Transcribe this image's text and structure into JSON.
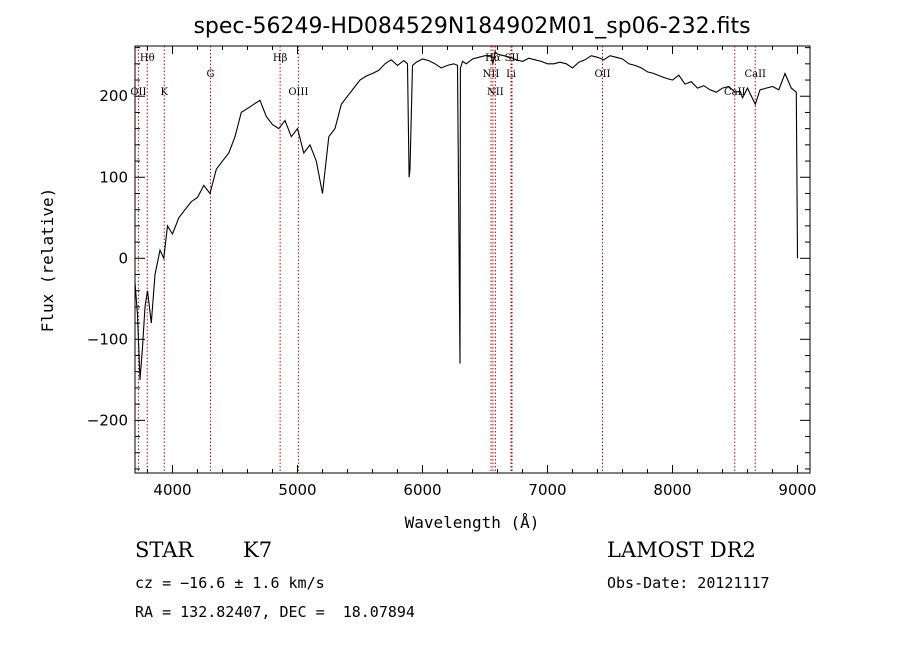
{
  "chart_data": {
    "type": "line",
    "title": "spec-56249-HD084529N184902M01_sp06-232.fits",
    "xlabel": "Wavelength (Å)",
    "ylabel": "Flux (relative)",
    "xlim": [
      3700,
      9100
    ],
    "ylim": [
      -265,
      262
    ],
    "xticks": [
      4000,
      5000,
      6000,
      7000,
      8000,
      9000
    ],
    "yticks": [
      -200,
      -100,
      0,
      100,
      200
    ],
    "xtick_labels": [
      "4000",
      "5000",
      "6000",
      "7000",
      "8000",
      "9000"
    ],
    "ytick_labels": [
      "−200",
      "−100",
      "0",
      "100",
      "200"
    ],
    "grid": false,
    "series": [
      {
        "color": "#000000",
        "x": [
          3700,
          3720,
          3740,
          3760,
          3780,
          3800,
          3830,
          3860,
          3900,
          3930,
          3960,
          4000,
          4050,
          4100,
          4150,
          4200,
          4250,
          4300,
          4350,
          4400,
          4450,
          4500,
          4550,
          4600,
          4650,
          4700,
          4750,
          4800,
          4850,
          4900,
          4950,
          5000,
          5050,
          5100,
          5150,
          5200,
          5250,
          5300,
          5350,
          5400,
          5450,
          5500,
          5550,
          5600,
          5650,
          5700,
          5750,
          5800,
          5850,
          5880,
          5893,
          5900,
          5920,
          5950,
          6000,
          6050,
          6100,
          6150,
          6200,
          6250,
          6280,
          6300,
          6303,
          6310,
          6320,
          6350,
          6400,
          6450,
          6500,
          6550,
          6563,
          6580,
          6600,
          6650,
          6700,
          6750,
          6800,
          6850,
          6900,
          6950,
          7000,
          7050,
          7100,
          7150,
          7200,
          7250,
          7300,
          7350,
          7400,
          7450,
          7500,
          7550,
          7600,
          7650,
          7700,
          7750,
          7800,
          7850,
          7900,
          7950,
          8000,
          8050,
          8100,
          8150,
          8200,
          8250,
          8300,
          8350,
          8400,
          8450,
          8500,
          8542,
          8560,
          8600,
          8662,
          8700,
          8750,
          8800,
          8850,
          8900,
          8950,
          8990,
          9000
        ],
        "y": [
          -30,
          -70,
          -150,
          -110,
          -60,
          -40,
          -80,
          -20,
          10,
          0,
          40,
          30,
          50,
          60,
          70,
          75,
          90,
          80,
          110,
          120,
          130,
          150,
          180,
          185,
          190,
          195,
          175,
          165,
          160,
          170,
          150,
          160,
          130,
          140,
          120,
          80,
          150,
          160,
          190,
          200,
          210,
          220,
          225,
          228,
          232,
          240,
          245,
          238,
          244,
          240,
          100,
          110,
          238,
          242,
          246,
          244,
          240,
          235,
          238,
          240,
          238,
          -130,
          235,
          238,
          243,
          240,
          246,
          248,
          250,
          250,
          240,
          255,
          252,
          250,
          248,
          245,
          243,
          247,
          245,
          243,
          240,
          240,
          242,
          240,
          235,
          242,
          245,
          250,
          248,
          245,
          250,
          248,
          246,
          240,
          238,
          235,
          230,
          228,
          225,
          222,
          220,
          226,
          215,
          218,
          210,
          213,
          208,
          205,
          210,
          212,
          205,
          206,
          198,
          210,
          190,
          208,
          210,
          212,
          208,
          228,
          210,
          205,
          0
        ]
      }
    ],
    "lines": [
      {
        "label": "Hθ",
        "x": 3798,
        "row": "top"
      },
      {
        "label": "OII",
        "x": 3727,
        "row": "low"
      },
      {
        "label": "K",
        "x": 3934,
        "row": "low"
      },
      {
        "label": "G",
        "x": 4304,
        "row": "mid"
      },
      {
        "label": "Hβ",
        "x": 4861,
        "row": "top"
      },
      {
        "label": "OIII",
        "x": 5007,
        "row": "low"
      },
      {
        "label": "NII",
        "x": 6548,
        "row": "mid"
      },
      {
        "label": "NII",
        "x": 6583,
        "row": "low"
      },
      {
        "label": "Hα",
        "x": 6563,
        "row": "top"
      },
      {
        "label": "SII",
        "x": 6716,
        "row": "top"
      },
      {
        "label": "Li",
        "x": 6708,
        "row": "mid"
      },
      {
        "label": "OII",
        "x": 7440,
        "row": "mid"
      },
      {
        "label": "CaII",
        "x": 8498,
        "row": "low"
      },
      {
        "label": "CaII",
        "x": 8662,
        "row": "mid"
      }
    ],
    "colors": {
      "lines": "#cc0000",
      "spectrum": "#000000"
    }
  },
  "info": {
    "class_label": "STAR",
    "subclass": "K7",
    "survey": "LAMOST DR2",
    "cz": "cz = −16.6 ± 1.6 km/s",
    "obs_date": "Obs-Date: 20121117",
    "radec": "RA = 132.82407, DEC =  18.07894"
  }
}
